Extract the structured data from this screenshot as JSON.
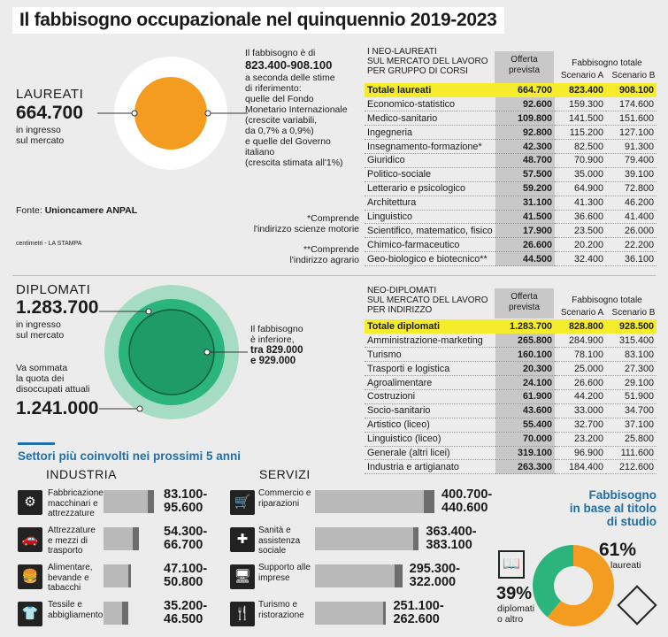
{
  "title": "Il fabbisogno occupazionale nel quinquennio 2019-2023",
  "laureati": {
    "label": "LAUREATI",
    "value": "664.700",
    "sub1": "in ingresso",
    "sub2": "sul mercato",
    "fab_l1": "Il fabbisogno è di",
    "fab_range": "823.400-908.100",
    "fab_lines": [
      "a seconda delle stime",
      "di riferimento:",
      "quelle del Fondo",
      "Monetario Internazionale",
      "(crescite variabili,",
      "da 0,7% a 0,9%)",
      "e quelle del Governo",
      "italiano",
      "(crescita stimata all'1%)"
    ],
    "source_label": "Fonte: ",
    "source": "Unioncamere ANPAL",
    "credit": "centimetri - LA STAMPA",
    "note1_l1": "*Comprende",
    "note1_l2": "l'indirizzo scienze motorie",
    "note2_l1": "**Comprende",
    "note2_l2": "l'indirizzo agrario"
  },
  "diplomati": {
    "label": "DIPLOMATI",
    "value": "1.283.700",
    "sub1": "in ingresso",
    "sub2": "sul mercato",
    "va_l1": "Va sommata",
    "va_l2": "la quota dei",
    "va_l3": "disoccupati attuali",
    "disocc": "1.241.000",
    "fab_l1": "Il fabbisogno",
    "fab_l2": "è inferiore,",
    "fab_l3": "tra 829.000",
    "fab_l4": "e 929.000"
  },
  "table_laureati": {
    "h1": "I NEO-LAUREATI",
    "h2": "SUL MERCATO DEL LAVORO",
    "h3": "PER GRUPPO DI CORSI",
    "off_h1": "Offerta",
    "off_h2": "prevista",
    "fab_h": "Fabbisogno totale",
    "sa": "Scenario A",
    "sb": "Scenario B",
    "total": [
      "Totale laureati",
      "664.700",
      "823.400",
      "908.100"
    ],
    "rows": [
      [
        "Economico-statistico",
        "92.600",
        "159.300",
        "174.600"
      ],
      [
        "Medico-sanitario",
        "109.800",
        "141.500",
        "151.600"
      ],
      [
        "Ingegneria",
        "92.800",
        "115.200",
        "127.100"
      ],
      [
        "Insegnamento-formazione*",
        "42.300",
        "82.500",
        "91.300"
      ],
      [
        "Giuridico",
        "48.700",
        "70.900",
        "79.400"
      ],
      [
        "Politico-sociale",
        "57.500",
        "35.000",
        "39.100"
      ],
      [
        "Letterario e psicologico",
        "59.200",
        "64.900",
        "72.800"
      ],
      [
        "Architettura",
        "31.100",
        "41.300",
        "46.200"
      ],
      [
        "Linguistico",
        "41.500",
        "36.600",
        "41.400"
      ],
      [
        "Scientifico, matematico, fisico",
        "17.900",
        "23.500",
        "26.000"
      ],
      [
        "Chimico-farmaceutico",
        "26.600",
        "20.200",
        "22.200"
      ],
      [
        "Geo-biologico e biotecnico**",
        "44.500",
        "32.400",
        "36.100"
      ]
    ]
  },
  "table_diplomati": {
    "h1": "NEO-DIPLOMATI",
    "h2": "SUL MERCATO DEL LAVORO",
    "h3": "PER INDIRIZZO",
    "off_h1": "Offerta",
    "off_h2": "prevista",
    "fab_h": "Fabbisogno totale",
    "sa": "Scenario A",
    "sb": "Scenario B",
    "total": [
      "Totale diplomati",
      "1.283.700",
      "828.800",
      "928.500"
    ],
    "rows": [
      [
        "Amministrazione-marketing",
        "265.800",
        "284.900",
        "315.400"
      ],
      [
        "Turismo",
        "160.100",
        "78.100",
        "83.100"
      ],
      [
        "Trasporti e logistica",
        "20.300",
        "25.000",
        "27.300"
      ],
      [
        "Agroalimentare",
        "24.100",
        "26.600",
        "29.100"
      ],
      [
        "Costruzioni",
        "61.900",
        "44.200",
        "51.900"
      ],
      [
        "Socio-sanitario",
        "43.600",
        "33.000",
        "34.700"
      ],
      [
        "Artistico (liceo)",
        "55.400",
        "32.700",
        "37.100"
      ],
      [
        "Linguistico (liceo)",
        "70.000",
        "23.200",
        "25.800"
      ],
      [
        "Generale (altri licei)",
        "319.100",
        "96.900",
        "111.600"
      ],
      [
        "Industria e artigianato",
        "263.300",
        "184.400",
        "212.600"
      ]
    ]
  },
  "sectors": {
    "title": "Settori più coinvolti nei prossimi 5 anni",
    "industria": "INDUSTRIA",
    "servizi": "SERVIZI"
  },
  "fabbisogno_titolo": {
    "t1": "Fabbisogno",
    "t2": "in base al titolo",
    "t3": "di studio",
    "laureati_pct": "61%",
    "laureati_label": "laureati",
    "diplomati_pct": "39%",
    "diplomati_l1": "diplomati",
    "diplomati_l2": "o altro"
  },
  "chart_data": [
    {
      "type": "bar",
      "title": "Settori più coinvolti nei prossimi 5 anni",
      "series": [
        {
          "name": "INDUSTRIA",
          "items": [
            {
              "label": "Fabbricazione macchinari e attrezzature",
              "min": 83100,
              "max": 95600,
              "text": "83.100-95.600",
              "icon": "gears-icon"
            },
            {
              "label": "Attrezzature e mezzi di trasporto",
              "min": 54300,
              "max": 66700,
              "text": "54.300-66.700",
              "icon": "car-icon"
            },
            {
              "label": "Alimentare, bevande e tabacchi",
              "min": 47100,
              "max": 50800,
              "text": "47.100-50.800",
              "icon": "burger-icon"
            },
            {
              "label": "Tessile e abbigliamento",
              "min": 35200,
              "max": 46500,
              "text": "35.200-46.500",
              "icon": "shirt-icon"
            }
          ]
        },
        {
          "name": "SERVIZI",
          "items": [
            {
              "label": "Commercio e riparazioni",
              "min": 400700,
              "max": 440600,
              "text": "400.700-440.600",
              "icon": "cart-icon"
            },
            {
              "label": "Sanità e assistenza sociale",
              "min": 363400,
              "max": 383100,
              "text": "363.400-383.100",
              "icon": "nurse-icon"
            },
            {
              "label": "Supporto alle imprese",
              "min": 295300,
              "max": 322000,
              "text": "295.300-322.000",
              "icon": "monitor-icon"
            },
            {
              "label": "Turismo e ristorazione",
              "min": 251100,
              "max": 262600,
              "text": "251.100-262.600",
              "icon": "cutlery-icon"
            }
          ]
        }
      ]
    },
    {
      "type": "pie",
      "title": "Fabbisogno in base al titolo di studio",
      "slices": [
        {
          "label": "laureati",
          "value": 61,
          "color": "#f39c1f"
        },
        {
          "label": "diplomati o altro",
          "value": 39,
          "color": "#2bb57c"
        }
      ]
    }
  ],
  "colors": {
    "accent": "#1f6fa8",
    "orange": "#f39c1f",
    "green": "#2bb57c",
    "highlight": "#f5ec2c"
  }
}
